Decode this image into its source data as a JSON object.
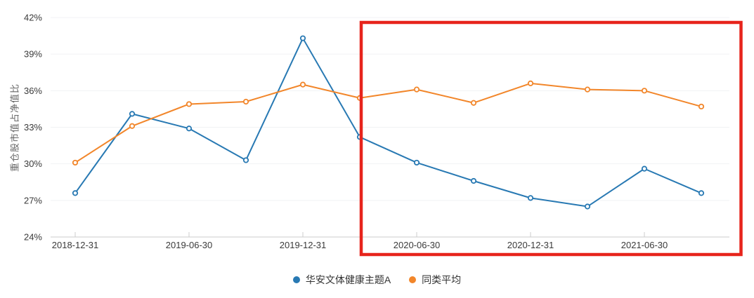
{
  "chart_data": {
    "type": "line",
    "title": "",
    "xlabel": "",
    "ylabel": "重仓股市值占净值比",
    "ylim": [
      24,
      42
    ],
    "yticks": [
      24,
      27,
      30,
      33,
      36,
      39,
      42
    ],
    "ytick_labels": [
      "24%",
      "27%",
      "30%",
      "33%",
      "36%",
      "39%",
      "42%"
    ],
    "grid": true,
    "legend_position": "bottom",
    "categories": [
      "2018-12-31",
      "2019-03-31",
      "2019-06-30",
      "2019-09-30",
      "2019-12-31",
      "2020-03-31",
      "2020-06-30",
      "2020-09-30",
      "2020-12-31",
      "2021-03-31",
      "2021-06-30",
      "2021-09-30"
    ],
    "x_tick_indices": [
      0,
      2,
      4,
      6,
      8,
      10
    ],
    "x_tick_labels": [
      "2018-12-31",
      "2019-06-30",
      "2019-12-31",
      "2020-06-30",
      "2020-12-31",
      "2021-06-30"
    ],
    "series": [
      {
        "name": "华安文体健康主题A",
        "color": "#2879b3",
        "marker": "hollow-circle",
        "values": [
          27.6,
          34.1,
          32.9,
          30.3,
          40.3,
          32.2,
          30.1,
          28.6,
          27.2,
          26.5,
          29.6,
          27.6
        ]
      },
      {
        "name": "同类平均",
        "color": "#f2862a",
        "marker": "hollow-circle",
        "values": [
          30.1,
          33.1,
          34.9,
          35.1,
          36.5,
          35.4,
          36.1,
          35.0,
          36.6,
          36.1,
          36.0,
          34.7
        ]
      }
    ],
    "highlight_box": {
      "from_category": "2020-03-31",
      "to_category": "2021-09-30",
      "color": "#e7241c"
    },
    "colors": {
      "grid": "#f1f2f4",
      "axis": "#cccccc",
      "tick_text": "#3a3a3a",
      "ylabel_text": "#666666",
      "background": "#ffffff"
    }
  }
}
